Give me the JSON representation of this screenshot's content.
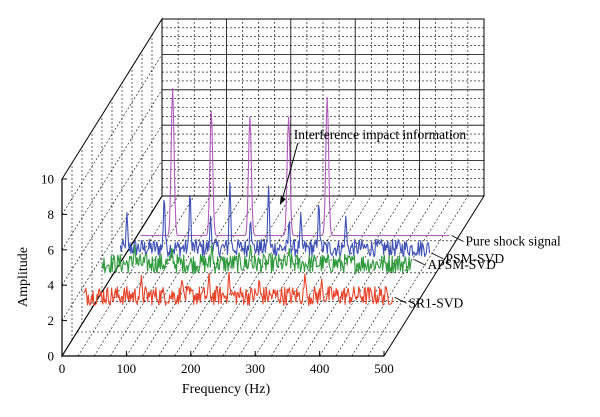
{
  "chart_data": {
    "type": "line",
    "style": "3d-waterfall",
    "xlabel": "Frequency (Hz)",
    "ylabel": "Amplitude",
    "x_ticks": [
      "0",
      "100",
      "200",
      "300",
      "400",
      "500"
    ],
    "y_ticks": [
      "0",
      "2",
      "4",
      "6",
      "8",
      "10"
    ],
    "xlim": [
      0,
      500
    ],
    "ylim": [
      0,
      10
    ],
    "grid": true,
    "series": [
      {
        "name": "SR1-SVD",
        "color": "#e8442a",
        "baseline": 1.5,
        "noise_amplitude": 1.1,
        "peaks": [
          {
            "x": 100,
            "y": 3.2
          },
          {
            "x": 163,
            "y": 3.0
          },
          {
            "x": 205,
            "y": 3.3
          },
          {
            "x": 236,
            "y": 3.4
          },
          {
            "x": 283,
            "y": 3.0
          },
          {
            "x": 354,
            "y": 3.3
          },
          {
            "x": 380,
            "y": 3.0
          }
        ]
      },
      {
        "name": "APSM-SVD",
        "color": "#2e9a3c",
        "baseline": 1.6,
        "noise_amplitude": 1.1,
        "peaks": [
          {
            "x": 60,
            "y": 3.2
          },
          {
            "x": 118,
            "y": 3.1
          },
          {
            "x": 180,
            "y": 3.2
          },
          {
            "x": 240,
            "y": 3.2
          },
          {
            "x": 300,
            "y": 3.0
          }
        ]
      },
      {
        "name": "PSM-SVD",
        "color": "#3f51b5",
        "baseline": 0.9,
        "noise_amplitude": 1.0,
        "peaks": [
          {
            "x": 20,
            "y": 3.4
          },
          {
            "x": 78,
            "y": 4.3
          },
          {
            "x": 118,
            "y": 4.6
          },
          {
            "x": 150,
            "y": 3.2
          },
          {
            "x": 180,
            "y": 5.1
          },
          {
            "x": 212,
            "y": 3.0
          },
          {
            "x": 240,
            "y": 4.9
          },
          {
            "x": 272,
            "y": 3.0
          },
          {
            "x": 290,
            "y": 3.4
          },
          {
            "x": 318,
            "y": 4.0
          },
          {
            "x": 360,
            "y": 3.2
          }
        ]
      },
      {
        "name": "Pure shock signal",
        "color": "#b05abb",
        "baseline": 0.3,
        "noise_amplitude": 0.0,
        "peaks": [
          {
            "x": 60,
            "y": 8.6
          },
          {
            "x": 120,
            "y": 7.3
          },
          {
            "x": 180,
            "y": 7.0
          },
          {
            "x": 240,
            "y": 7.0
          },
          {
            "x": 300,
            "y": 8.1
          }
        ]
      }
    ],
    "annotations": [
      {
        "text": "Interference impact information",
        "x": 245,
        "y": 3.1
      }
    ]
  }
}
